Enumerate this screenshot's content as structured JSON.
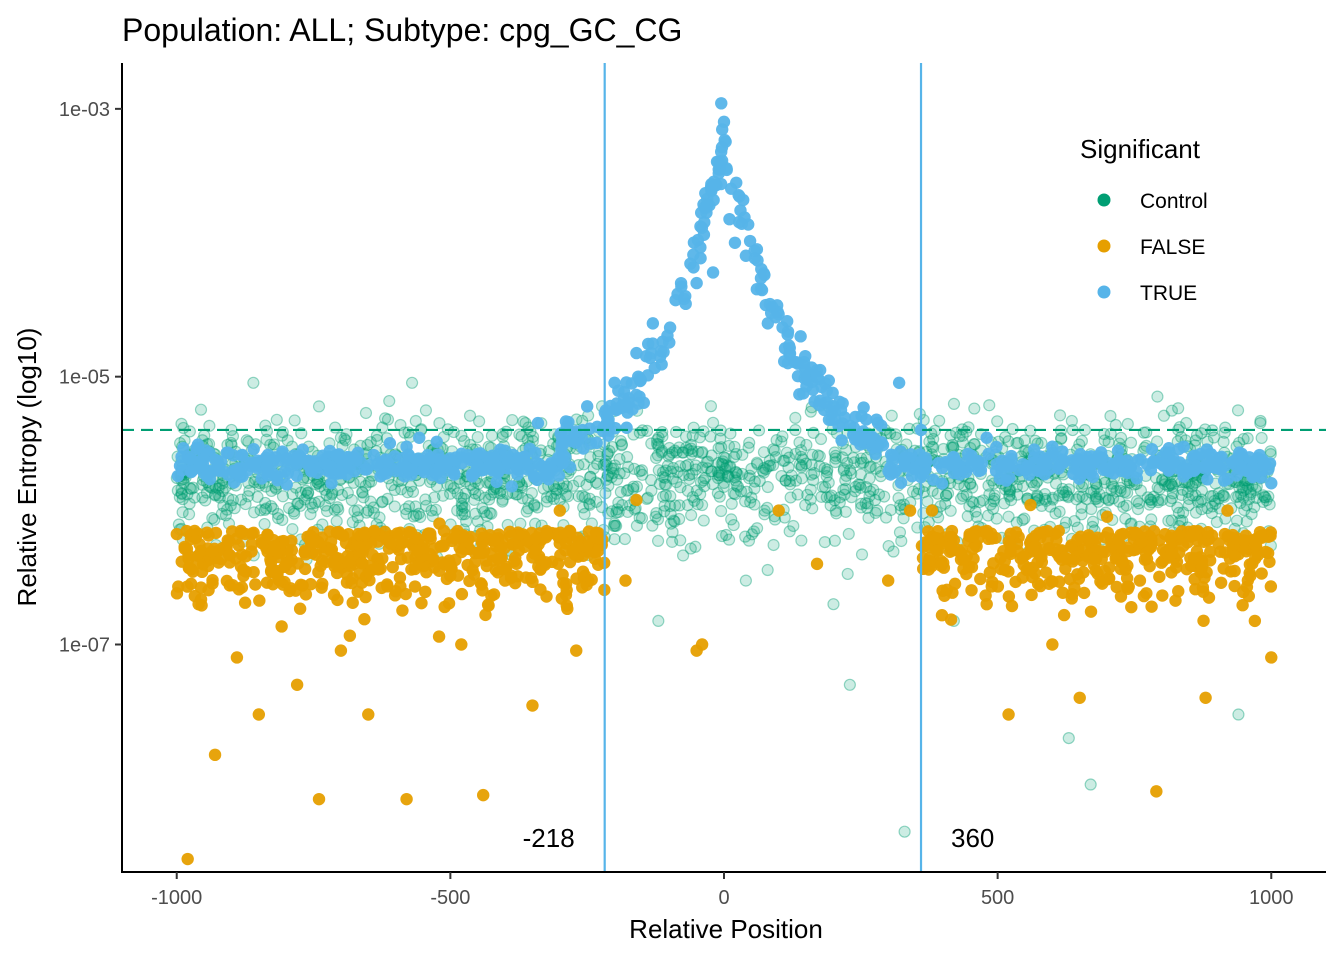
{
  "chart_data": {
    "type": "scatter",
    "title": "Population: ALL; Subtype: cpg_GC_CG",
    "xlabel": "Relative Position",
    "ylabel": "Relative Entropy (log10)",
    "x_ticks": [
      -1000,
      -500,
      0,
      500,
      1000
    ],
    "x_tick_labels": [
      "-1000",
      "-500",
      "0",
      "500",
      "1000"
    ],
    "y_ticks": [
      0.001,
      1e-05,
      1e-07
    ],
    "y_tick_labels": [
      "1e-03",
      "1e-05",
      "1e-07"
    ],
    "y_scale": "log10",
    "xlim": [
      -1100,
      1100
    ],
    "ylim": [
      2e-09,
      0.0022
    ],
    "legend": {
      "title": "Significant",
      "position": "top-right",
      "entries": [
        {
          "label": "Control",
          "color": "#009E73"
        },
        {
          "label": "FALSE",
          "color": "#E69F00"
        },
        {
          "label": "TRUE",
          "color": "#56B4E9"
        }
      ]
    },
    "reference_lines": {
      "horizontal_dashed": {
        "y": 4e-06,
        "color": "#009E73"
      },
      "vertical": [
        {
          "x": -218,
          "label": "-218",
          "color": "#56B4E9"
        },
        {
          "x": 360,
          "label": "360",
          "color": "#56B4E9"
        }
      ]
    },
    "series": [
      {
        "name": "Control",
        "color": "#009E73",
        "opacity": 0.18,
        "density": "dense band across all positions",
        "points": [
          [
            -990,
            3e-06
          ],
          [
            -950,
            2e-06
          ],
          [
            -900,
            4e-06
          ],
          [
            -860,
            9e-06
          ],
          [
            -820,
            1.5e-06
          ],
          [
            -780,
            2.5e-06
          ],
          [
            -740,
            6e-06
          ],
          [
            -700,
            3.5e-06
          ],
          [
            -650,
            1e-06
          ],
          [
            -600,
            2.2e-06
          ],
          [
            -570,
            9e-06
          ],
          [
            -520,
            4.5e-06
          ],
          [
            -470,
            1.8e-06
          ],
          [
            -430,
            3e-06
          ],
          [
            -390,
            5e-07
          ],
          [
            -350,
            2.5e-06
          ],
          [
            -300,
            1.2e-06
          ],
          [
            -250,
            3.5e-06
          ],
          [
            -200,
            8e-07
          ],
          [
            -150,
            2e-06
          ],
          [
            -120,
            1.5e-07
          ],
          [
            -80,
            6e-07
          ],
          [
            -40,
            1.1e-06
          ],
          [
            0,
            2.5e-06
          ],
          [
            40,
            3e-07
          ],
          [
            80,
            1.5e-06
          ],
          [
            120,
            7e-07
          ],
          [
            160,
            2.2e-06
          ],
          [
            200,
            2e-07
          ],
          [
            230,
            5e-08
          ],
          [
            280,
            1e-06
          ],
          [
            330,
            4e-09
          ],
          [
            380,
            3e-06
          ],
          [
            420,
            1.5e-07
          ],
          [
            470,
            2.8e-06
          ],
          [
            520,
            9e-07
          ],
          [
            580,
            3.2e-06
          ],
          [
            630,
            2e-08
          ],
          [
            670,
            9e-09
          ],
          [
            720,
            2.5e-06
          ],
          [
            780,
            1.2e-06
          ],
          [
            830,
            4e-06
          ],
          [
            880,
            2e-06
          ],
          [
            940,
            3e-08
          ],
          [
            980,
            4.5e-06
          ]
        ]
      },
      {
        "name": "FALSE",
        "color": "#E69F00",
        "opacity": 0.95,
        "density": "dense band outside [-218, 360]",
        "points": [
          [
            -980,
            2.5e-09
          ],
          [
            -960,
            2e-07
          ],
          [
            -930,
            1.5e-08
          ],
          [
            -890,
            8e-08
          ],
          [
            -850,
            3e-08
          ],
          [
            -800,
            4e-07
          ],
          [
            -780,
            5e-08
          ],
          [
            -740,
            7e-09
          ],
          [
            -700,
            9e-08
          ],
          [
            -650,
            3e-08
          ],
          [
            -600,
            2.5e-07
          ],
          [
            -580,
            7e-09
          ],
          [
            -560,
            5e-07
          ],
          [
            -520,
            8e-07
          ],
          [
            -480,
            1e-07
          ],
          [
            -440,
            7.5e-09
          ],
          [
            -400,
            3e-07
          ],
          [
            -350,
            3.5e-08
          ],
          [
            -300,
            1e-06
          ],
          [
            -270,
            9e-08
          ],
          [
            -230,
            5e-07
          ],
          [
            -180,
            3e-07
          ],
          [
            -160,
            1.2e-06
          ],
          [
            -50,
            9e-08
          ],
          [
            -40,
            1e-07
          ],
          [
            100,
            1e-06
          ],
          [
            170,
            4e-07
          ],
          [
            300,
            3e-07
          ],
          [
            340,
            1e-06
          ],
          [
            380,
            1e-06
          ],
          [
            420,
            6e-07
          ],
          [
            480,
            2e-07
          ],
          [
            520,
            3e-08
          ],
          [
            560,
            1.1e-06
          ],
          [
            600,
            1e-07
          ],
          [
            650,
            4e-08
          ],
          [
            700,
            9e-07
          ],
          [
            760,
            3e-07
          ],
          [
            790,
            8e-09
          ],
          [
            830,
            2.5e-07
          ],
          [
            880,
            4e-08
          ],
          [
            920,
            1e-06
          ],
          [
            950,
            6e-07
          ],
          [
            970,
            1.5e-07
          ],
          [
            1000,
            8e-08
          ]
        ]
      },
      {
        "name": "TRUE",
        "color": "#56B4E9",
        "opacity": 0.95,
        "density": "peaked near 0",
        "points": [
          [
            -990,
            2e-06
          ],
          [
            -930,
            2.4e-06
          ],
          [
            -880,
            1.8e-06
          ],
          [
            -820,
            2.5e-06
          ],
          [
            -760,
            2.2e-06
          ],
          [
            -700,
            1.9e-06
          ],
          [
            -640,
            2.6e-06
          ],
          [
            -580,
            3e-06
          ],
          [
            -520,
            2e-06
          ],
          [
            -460,
            1.8e-06
          ],
          [
            -400,
            2.8e-06
          ],
          [
            -340,
            4.5e-06
          ],
          [
            -290,
            2.5e-06
          ],
          [
            -250,
            6e-06
          ],
          [
            -200,
            9e-06
          ],
          [
            -160,
            1.5e-05
          ],
          [
            -130,
            2.5e-05
          ],
          [
            -100,
            1.8e-05
          ],
          [
            -70,
            3.5e-05
          ],
          [
            -50,
            5e-05
          ],
          [
            -20,
            6e-05
          ],
          [
            -5,
            0.0011
          ],
          [
            0,
            0.0008
          ],
          [
            5,
            0.00035
          ],
          [
            10,
            0.00015
          ],
          [
            20,
            0.0001
          ],
          [
            40,
            8e-05
          ],
          [
            60,
            4.5e-05
          ],
          [
            80,
            2.5e-05
          ],
          [
            110,
            1.3e-05
          ],
          [
            140,
            2e-05
          ],
          [
            170,
            1e-05
          ],
          [
            200,
            6e-06
          ],
          [
            240,
            5e-06
          ],
          [
            280,
            3e-06
          ],
          [
            320,
            9e-06
          ],
          [
            360,
            4e-06
          ],
          [
            420,
            2.5e-06
          ],
          [
            480,
            3.5e-06
          ],
          [
            540,
            2e-06
          ],
          [
            600,
            3e-06
          ],
          [
            660,
            2.2e-06
          ],
          [
            720,
            2.8e-06
          ],
          [
            780,
            2e-06
          ],
          [
            840,
            3e-06
          ],
          [
            900,
            2.2e-06
          ],
          [
            960,
            2.5e-06
          ],
          [
            1000,
            1.6e-06
          ]
        ]
      }
    ]
  }
}
